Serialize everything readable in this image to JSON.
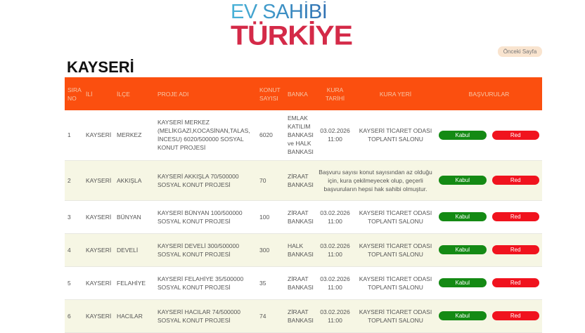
{
  "logo": {
    "line1": "EV SAHİBİ",
    "line2": "TÜRKİYE"
  },
  "prev_button": "Önceki Sayfa",
  "title": "KAYSERİ",
  "table": {
    "headers": [
      "SIRA NO",
      "İLİ",
      "İLÇE",
      "PROJE ADI",
      "KONUT SAYISI",
      "BANKA",
      "KURA TARİHİ",
      "KURA YERİ",
      "BAŞVURULAR"
    ],
    "accept_label": "Kabul",
    "reject_label": "Red",
    "rows": [
      {
        "no": "1",
        "il": "KAYSERİ",
        "ilce": "MERKEZ",
        "proje": "KAYSERİ MERKEZ (MELİKGAZİ,KOCASİNAN,TALAS, İNCESU) 6020/500000 SOSYAL KONUT PROJESİ",
        "konut": "6020",
        "banka": "EMLAK KATILIM BANKASI ve HALK BANKASI",
        "tarih": "03.02.2026 11:00",
        "yer": "KAYSERİ TİCARET ODASI TOPLANTI SALONU"
      },
      {
        "no": "2",
        "il": "KAYSERİ",
        "ilce": "AKKIŞLA",
        "proje": "KAYSERİ AKKIŞLA 70/500000 SOSYAL KONUT PROJESİ",
        "konut": "70",
        "banka": "ZİRAAT BANKASI",
        "note": "Başvuru sayısı konut sayısından az olduğu için, kura çekilmeyecek olup, geçerli başvuruların hepsi hak sahibi olmuştur."
      },
      {
        "no": "3",
        "il": "KAYSERİ",
        "ilce": "BÜNYAN",
        "proje": "KAYSERİ BÜNYAN 100/500000 SOSYAL KONUT PROJESİ",
        "konut": "100",
        "banka": "ZİRAAT BANKASI",
        "tarih": "03.02.2026 11:00",
        "yer": "KAYSERİ TİCARET ODASI TOPLANTI SALONU"
      },
      {
        "no": "4",
        "il": "KAYSERİ",
        "ilce": "DEVELİ",
        "proje": "KAYSERİ DEVELİ 300/500000 SOSYAL KONUT PROJESİ",
        "konut": "300",
        "banka": "HALK BANKASI",
        "tarih": "03.02.2026 11:00",
        "yer": "KAYSERİ TİCARET ODASI TOPLANTI SALONU"
      },
      {
        "no": "5",
        "il": "KAYSERİ",
        "ilce": "FELAHİYE",
        "proje": "KAYSERİ FELAHİYE 35/500000 SOSYAL KONUT PROJESİ",
        "konut": "35",
        "banka": "ZİRAAT BANKASI",
        "tarih": "03.02.2026 11:00",
        "yer": "KAYSERİ TİCARET ODASI TOPLANTI SALONU"
      },
      {
        "no": "6",
        "il": "KAYSERİ",
        "ilce": "HACILAR",
        "proje": "KAYSERİ HACILAR 74/500000 SOSYAL KONUT PROJESİ",
        "konut": "74",
        "banka": "ZİRAAT BANKASI",
        "tarih": "03.02.2026 11:00",
        "yer": "KAYSERİ TİCARET ODASI TOPLANTI SALONU"
      }
    ]
  },
  "colors": {
    "header": "#fb4f0f",
    "accept": "#148a14",
    "reject": "#f0131e",
    "alt_row": "#f6f6e4"
  }
}
